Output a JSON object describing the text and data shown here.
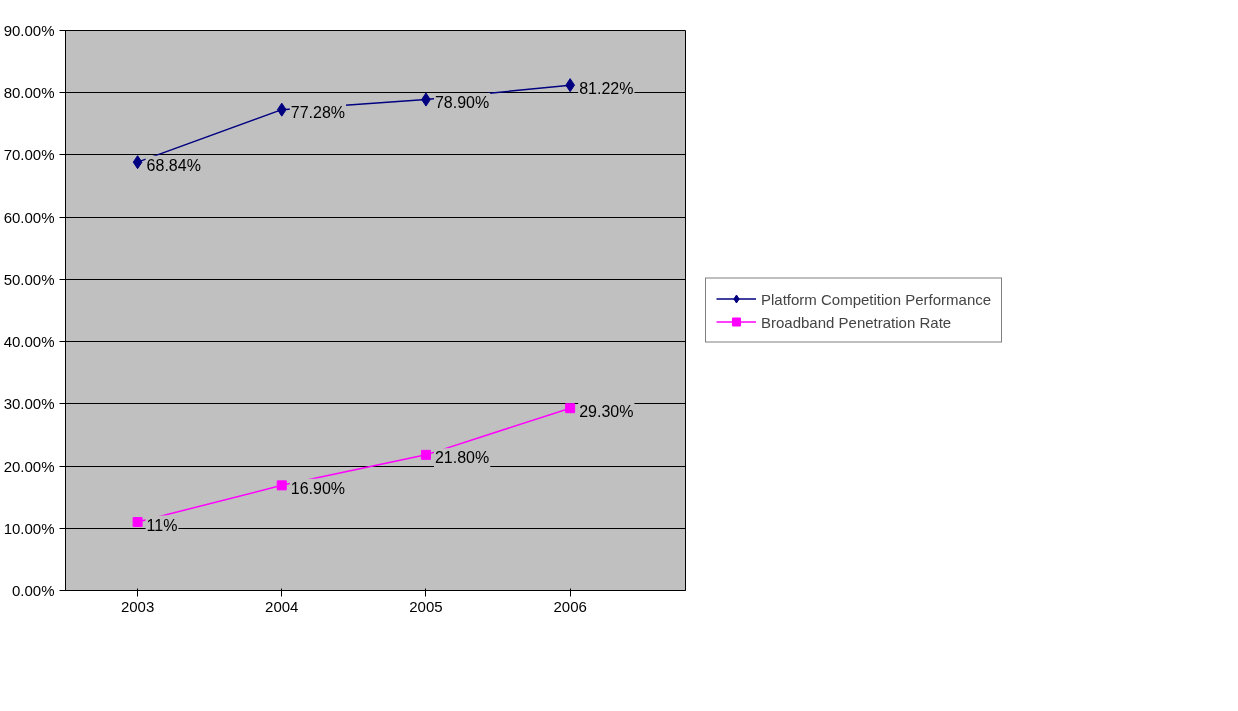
{
  "chart_data": {
    "type": "line",
    "categories": [
      "2003",
      "2004",
      "2005",
      "2006"
    ],
    "series": [
      {
        "name": "Platform Competition Performance",
        "color": "#000080",
        "marker": "diamond",
        "values": [
          68.84,
          77.28,
          78.9,
          81.22
        ],
        "value_labels": [
          "68.84%",
          "77.28%",
          "78.90%",
          "81.22%"
        ]
      },
      {
        "name": "Broadband Penetration Rate",
        "color": "#ff00ff",
        "marker": "square",
        "values": [
          11,
          16.9,
          21.8,
          29.3
        ],
        "value_labels": [
          "11%",
          "16.90%",
          "21.80%",
          "29.30%"
        ]
      }
    ],
    "ylim": [
      0,
      90
    ],
    "yticks": [
      {
        "value": 0,
        "label": "0.00%"
      },
      {
        "value": 10,
        "label": "10.00%"
      },
      {
        "value": 20,
        "label": "20.00%"
      },
      {
        "value": 30,
        "label": "30.00%"
      },
      {
        "value": 40,
        "label": "40.00%"
      },
      {
        "value": 50,
        "label": "50.00%"
      },
      {
        "value": 60,
        "label": "60.00%"
      },
      {
        "value": 70,
        "label": "70.00%"
      },
      {
        "value": 80,
        "label": "80.00%"
      },
      {
        "value": 90,
        "label": "90.00%"
      }
    ],
    "grid": "y",
    "legend": "right"
  }
}
